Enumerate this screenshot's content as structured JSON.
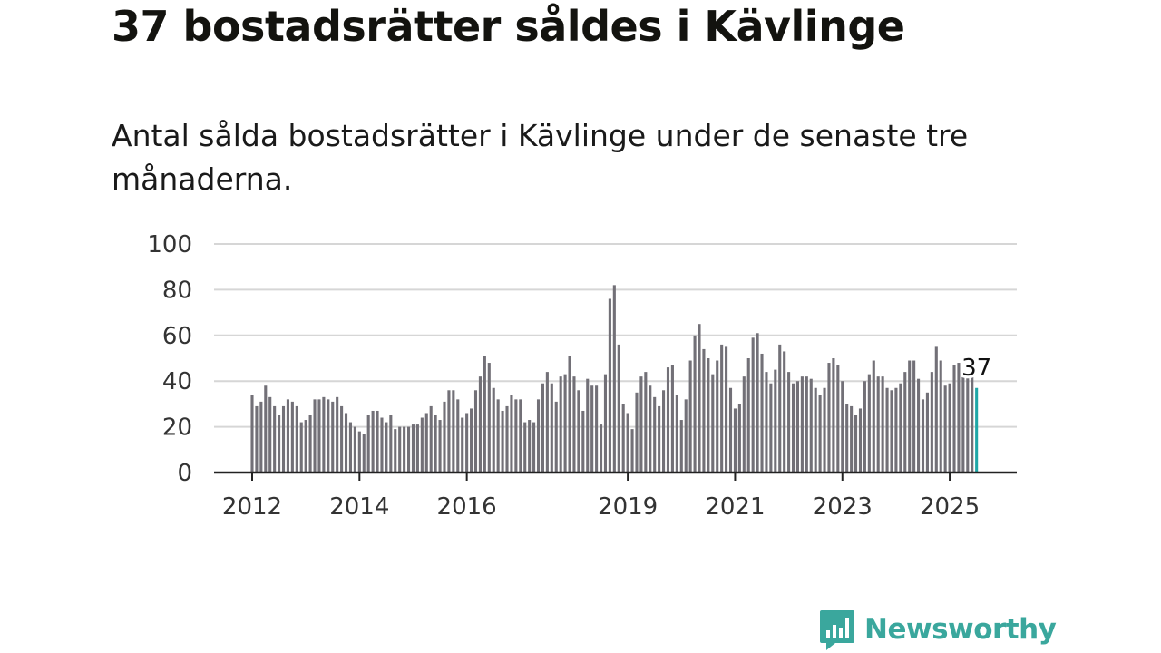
{
  "title": "37 bostadsrätter såldes i Kävlinge",
  "subtitle": "Antal sålda bostadsrätter i Kävlinge under de senaste tre månaderna.",
  "brand": {
    "name": "Newsworthy",
    "icon": "newsworthy-logo-icon",
    "color": "#3aa79d"
  },
  "colors": {
    "bar": "#727077",
    "highlight": "#1fa7a7",
    "grid": "#d6d6d6",
    "axis": "#222222"
  },
  "chart_data": {
    "type": "bar",
    "title": "",
    "xlabel": "",
    "ylabel": "",
    "ylim": [
      0,
      100
    ],
    "yticks": [
      0,
      20,
      40,
      60,
      80,
      100
    ],
    "xtick_labels": [
      "2012",
      "2014",
      "2016",
      "2019",
      "2021",
      "2023",
      "2025"
    ],
    "grid": true,
    "x_start": "2012-01",
    "values": [
      34,
      29,
      31,
      38,
      33,
      29,
      25,
      29,
      32,
      31,
      29,
      22,
      23,
      25,
      32,
      32,
      33,
      32,
      31,
      33,
      29,
      26,
      22,
      20,
      18,
      17,
      25,
      27,
      27,
      24,
      22,
      25,
      19,
      20,
      20,
      20,
      21,
      21,
      24,
      26,
      29,
      25,
      23,
      31,
      36,
      36,
      32,
      24,
      26,
      28,
      36,
      42,
      51,
      48,
      37,
      32,
      27,
      29,
      34,
      32,
      32,
      22,
      23,
      22,
      32,
      39,
      44,
      39,
      31,
      42,
      43,
      51,
      42,
      36,
      27,
      41,
      38,
      38,
      21,
      43,
      76,
      82,
      56,
      30,
      26,
      19,
      35,
      42,
      44,
      38,
      33,
      29,
      36,
      46,
      47,
      34,
      23,
      32,
      49,
      60,
      65,
      54,
      50,
      43,
      49,
      56,
      55,
      37,
      28,
      30,
      42,
      50,
      59,
      61,
      52,
      44,
      39,
      45,
      56,
      53,
      44,
      39,
      40,
      42,
      42,
      41,
      37,
      34,
      37,
      48,
      50,
      47,
      40,
      30,
      29,
      25,
      28,
      40,
      43,
      49,
      42,
      42,
      37,
      36,
      37,
      39,
      44,
      49,
      49,
      41,
      32,
      35,
      44,
      55,
      49,
      38,
      39,
      47,
      48,
      42,
      42,
      42,
      37
    ],
    "highlight_label": "37"
  }
}
